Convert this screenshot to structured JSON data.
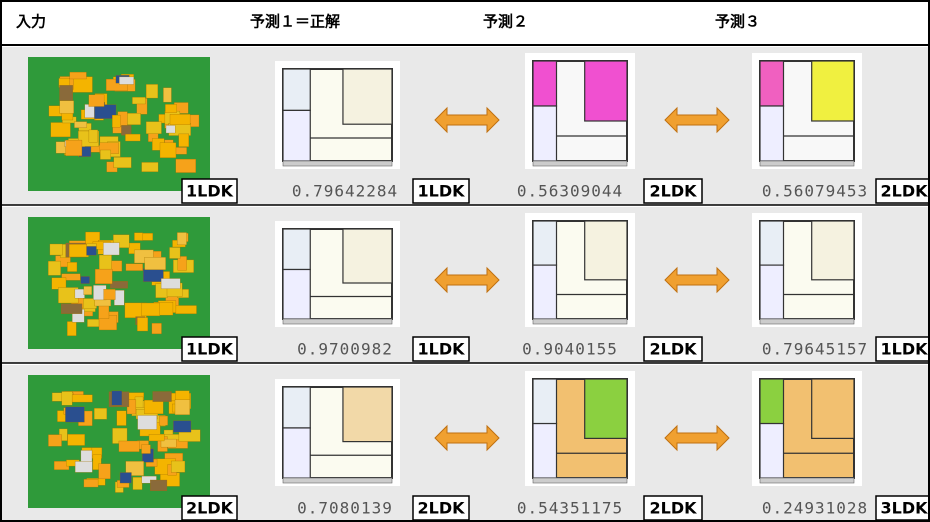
{
  "header": [
    "入力",
    "予測１＝正解",
    "予測２",
    "予測３"
  ],
  "rows": [
    {
      "input_label": "1LDK",
      "predictions": [
        {
          "score": "0.79642284",
          "label": "1LDK"
        },
        {
          "score": "0.56309044",
          "label": "2LDK"
        },
        {
          "score": "0.56079453",
          "label": "2LDK"
        }
      ]
    },
    {
      "input_label": "1LDK",
      "predictions": [
        {
          "score": "0.9700982",
          "label": "1LDK"
        },
        {
          "score": "0.9040155",
          "label": "2LDK"
        },
        {
          "score": "0.79645157",
          "label": "1LDK"
        }
      ]
    },
    {
      "input_label": "2LDK",
      "predictions": [
        {
          "score": "0.7080139",
          "label": "2LDK"
        },
        {
          "score": "0.54351175",
          "label": "2LDK"
        },
        {
          "score": "0.24931028",
          "label": "3LDK"
        }
      ]
    }
  ]
}
